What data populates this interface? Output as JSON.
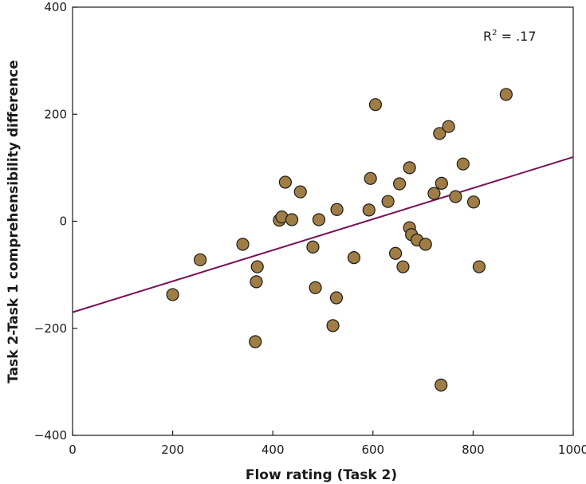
{
  "chart_data": {
    "type": "scatter",
    "title": "",
    "xlabel": "Flow rating (Task 2)",
    "ylabel": "Task 2-Task 1 comprehensibility difference",
    "xlim": [
      0,
      1000
    ],
    "ylim": [
      -400,
      400
    ],
    "x_ticks": [
      "0",
      "200",
      "400",
      "600",
      "800",
      "1000"
    ],
    "y_ticks": [
      "−400",
      "−200",
      "0",
      "200",
      "400"
    ],
    "grid": false,
    "annotation": {
      "base": "R",
      "sup": "2",
      "rest": " = .17"
    },
    "fit_line": {
      "x": [
        0,
        1000
      ],
      "y": [
        -170,
        120
      ],
      "color": "#7a1257"
    },
    "marker_color": "#a07d44",
    "marker_edge_color": "#1a1a1a",
    "points": [
      [
        200,
        -137
      ],
      [
        255,
        -72
      ],
      [
        340,
        -43
      ],
      [
        365,
        -225
      ],
      [
        367,
        -113
      ],
      [
        369,
        -85
      ],
      [
        413,
        2
      ],
      [
        418,
        8
      ],
      [
        425,
        73
      ],
      [
        438,
        3
      ],
      [
        455,
        55
      ],
      [
        480,
        -48
      ],
      [
        485,
        -124
      ],
      [
        492,
        3
      ],
      [
        520,
        -195
      ],
      [
        527,
        -143
      ],
      [
        528,
        22
      ],
      [
        562,
        -68
      ],
      [
        592,
        21
      ],
      [
        595,
        80
      ],
      [
        605,
        218
      ],
      [
        630,
        37
      ],
      [
        645,
        -60
      ],
      [
        653,
        70
      ],
      [
        660,
        -85
      ],
      [
        673,
        100
      ],
      [
        673,
        -12
      ],
      [
        677,
        -25
      ],
      [
        688,
        -35
      ],
      [
        705,
        -43
      ],
      [
        722,
        52
      ],
      [
        733,
        164
      ],
      [
        736,
        -306
      ],
      [
        737,
        71
      ],
      [
        751,
        177
      ],
      [
        765,
        46
      ],
      [
        780,
        107
      ],
      [
        801,
        36
      ],
      [
        812,
        -85
      ],
      [
        866,
        237
      ]
    ]
  }
}
